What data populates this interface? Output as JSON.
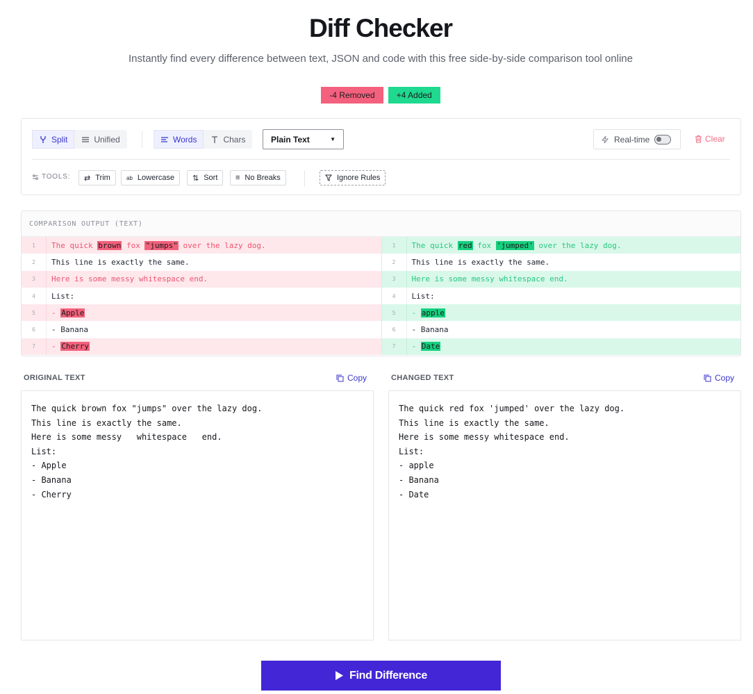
{
  "header": {
    "title": "Diff Checker",
    "subtitle": "Instantly find every difference between text, JSON and code with this free side-by-side comparison tool online"
  },
  "stats": {
    "removed": "-4 Removed",
    "added": "+4 Added"
  },
  "toolbar": {
    "view_modes": [
      "Split",
      "Unified"
    ],
    "active_view": "Split",
    "granularity": [
      "Words",
      "Chars"
    ],
    "active_granularity": "Words",
    "format_select": "Plain Text",
    "realtime_label": "Real-time",
    "realtime_on": false,
    "clear_label": "Clear",
    "tools_label": "TOOLS:",
    "tools": [
      "Trim",
      "Lowercase",
      "Sort",
      "No Breaks"
    ],
    "ignore_rules": "Ignore Rules"
  },
  "output": {
    "heading": "COMPARISON OUTPUT (TEXT)",
    "left": [
      {
        "n": "1",
        "type": "rem",
        "parts": [
          [
            "The quick ",
            false
          ],
          [
            "brown",
            true
          ],
          [
            " fox ",
            false
          ],
          [
            "\"jumps\"",
            true
          ],
          [
            " over the lazy dog.",
            false
          ]
        ]
      },
      {
        "n": "2",
        "type": "same",
        "parts": [
          [
            "This line is exactly the same.",
            false
          ]
        ]
      },
      {
        "n": "3",
        "type": "rem",
        "parts": [
          [
            "Here is some messy whitespace end.",
            false
          ]
        ]
      },
      {
        "n": "4",
        "type": "same",
        "parts": [
          [
            "List:",
            false
          ]
        ]
      },
      {
        "n": "5",
        "type": "rem",
        "parts": [
          [
            "- ",
            false
          ],
          [
            "Apple",
            true
          ]
        ]
      },
      {
        "n": "6",
        "type": "same",
        "parts": [
          [
            "- Banana",
            false
          ]
        ]
      },
      {
        "n": "7",
        "type": "rem",
        "parts": [
          [
            "- ",
            false
          ],
          [
            "Cherry",
            true
          ]
        ]
      }
    ],
    "right": [
      {
        "n": "1",
        "type": "add",
        "parts": [
          [
            "The quick ",
            false
          ],
          [
            "red",
            true
          ],
          [
            " fox ",
            false
          ],
          [
            "'jumped'",
            true
          ],
          [
            " over the lazy dog.",
            false
          ]
        ]
      },
      {
        "n": "2",
        "type": "same",
        "parts": [
          [
            "This line is exactly the same.",
            false
          ]
        ]
      },
      {
        "n": "3",
        "type": "add",
        "parts": [
          [
            "Here is some messy whitespace end.",
            false
          ]
        ]
      },
      {
        "n": "4",
        "type": "same",
        "parts": [
          [
            "List:",
            false
          ]
        ]
      },
      {
        "n": "5",
        "type": "add",
        "parts": [
          [
            "- ",
            false
          ],
          [
            "apple",
            true
          ]
        ]
      },
      {
        "n": "6",
        "type": "same",
        "parts": [
          [
            "- Banana",
            false
          ]
        ]
      },
      {
        "n": "7",
        "type": "add",
        "parts": [
          [
            "- ",
            false
          ],
          [
            "Date",
            true
          ]
        ]
      }
    ]
  },
  "original": {
    "label": "ORIGINAL TEXT",
    "copy_label": "Copy",
    "text": "The quick brown fox \"jumps\" over the lazy dog.\nThis line is exactly the same.\nHere is some messy   whitespace   end.\nList:\n- Apple\n- Banana\n- Cherry"
  },
  "changed": {
    "label": "CHANGED TEXT",
    "copy_label": "Copy",
    "text": "The quick red fox 'jumped' over the lazy dog.\nThis line is exactly the same.\nHere is some messy whitespace end.\nList:\n- apple\n- Banana\n- Date"
  },
  "action": {
    "find_label": "Find Difference"
  },
  "colors": {
    "accent": "#4326d6",
    "removed": "#f4617e",
    "added": "#1ed98f"
  }
}
